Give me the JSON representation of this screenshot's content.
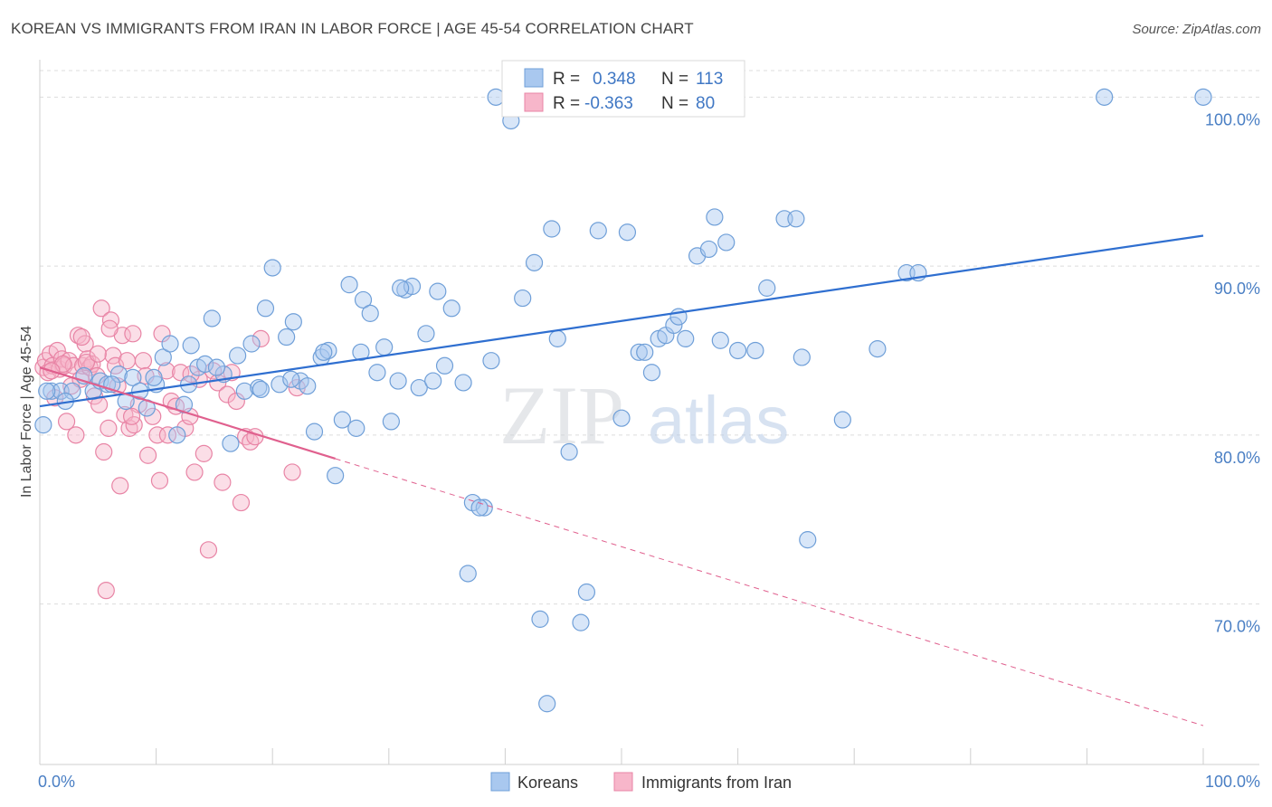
{
  "header": {
    "title": "KOREAN VS IMMIGRANTS FROM IRAN IN LABOR FORCE | AGE 45-54 CORRELATION CHART",
    "source": "Source: ZipAtlas.com"
  },
  "watermark": {
    "zip": "ZIP",
    "atlas": "atlas"
  },
  "legend": {
    "koreans": {
      "r_label": "R =",
      "r_value": "0.348",
      "n_label": "N =",
      "n_value": "113"
    },
    "iran": {
      "r_label": "R =",
      "r_value": "-0.363",
      "n_label": "N =",
      "n_value": "80"
    }
  },
  "bottom_legend": {
    "koreans": "Koreans",
    "iran": "Immigrants from Iran"
  },
  "colors": {
    "koreans_fill": "#a9c8ef",
    "koreans_stroke": "#6f9fd8",
    "koreans_line": "#2f6fd0",
    "iran_fill": "#f7b6ca",
    "iran_stroke": "#e884a5",
    "iran_line": "#e0608e",
    "grid": "#dcdcdc",
    "tick_text": "#4a7fc4"
  },
  "chart_data": {
    "type": "scatter",
    "title": "KOREAN VS IMMIGRANTS FROM IRAN IN LABOR FORCE | AGE 45-54 CORRELATION CHART",
    "xlabel": "",
    "ylabel": "In Labor Force | Age 45-54",
    "xlim": [
      0,
      100
    ],
    "ylim": [
      60.5,
      102
    ],
    "x_tick_labels": [
      "0.0%",
      "100.0%"
    ],
    "y_ticks": [
      70,
      80,
      90,
      100
    ],
    "y_tick_labels": [
      "70.0%",
      "80.0%",
      "90.0%",
      "100.0%"
    ],
    "grid": true,
    "series": [
      {
        "name": "Koreans",
        "r": 0.348,
        "n": 113,
        "trend": {
          "x": [
            0,
            100
          ],
          "y": [
            81.7,
            91.8
          ]
        },
        "points": [
          [
            0.3,
            80.6
          ],
          [
            1.0,
            82.6
          ],
          [
            1.8,
            82.6
          ],
          [
            2.8,
            82.6
          ],
          [
            3.8,
            83.5
          ],
          [
            4.6,
            82.6
          ],
          [
            5.2,
            83.2
          ],
          [
            5.8,
            83.0
          ],
          [
            6.8,
            83.6
          ],
          [
            7.4,
            82.0
          ],
          [
            8.0,
            83.4
          ],
          [
            8.6,
            82.6
          ],
          [
            9.2,
            81.6
          ],
          [
            10.0,
            83.0
          ],
          [
            10.6,
            84.6
          ],
          [
            11.2,
            85.4
          ],
          [
            11.8,
            80.0
          ],
          [
            12.4,
            81.8
          ],
          [
            13.0,
            85.3
          ],
          [
            13.6,
            84.0
          ],
          [
            14.2,
            84.2
          ],
          [
            14.8,
            86.9
          ],
          [
            15.8,
            83.6
          ],
          [
            16.4,
            79.5
          ],
          [
            17.0,
            84.7
          ],
          [
            17.6,
            82.6
          ],
          [
            18.2,
            85.4
          ],
          [
            18.8,
            82.8
          ],
          [
            19.4,
            87.5
          ],
          [
            20.0,
            89.9
          ],
          [
            20.6,
            83.0
          ],
          [
            21.2,
            85.8
          ],
          [
            21.8,
            86.7
          ],
          [
            22.4,
            83.2
          ],
          [
            23.0,
            82.9
          ],
          [
            23.6,
            80.2
          ],
          [
            24.2,
            84.6
          ],
          [
            24.8,
            85.0
          ],
          [
            25.4,
            77.6
          ],
          [
            26.0,
            80.9
          ],
          [
            26.6,
            88.9
          ],
          [
            27.2,
            80.4
          ],
          [
            27.8,
            88.0
          ],
          [
            28.4,
            87.2
          ],
          [
            29.0,
            83.7
          ],
          [
            29.6,
            85.2
          ],
          [
            30.2,
            80.8
          ],
          [
            30.8,
            83.2
          ],
          [
            31.4,
            88.6
          ],
          [
            32.0,
            88.8
          ],
          [
            32.6,
            82.8
          ],
          [
            33.2,
            86.0
          ],
          [
            34.2,
            88.5
          ],
          [
            34.8,
            84.1
          ],
          [
            35.4,
            87.5
          ],
          [
            36.4,
            83.1
          ],
          [
            37.2,
            76.0
          ],
          [
            38.2,
            75.7
          ],
          [
            38.8,
            84.4
          ],
          [
            36.8,
            71.8
          ],
          [
            39.2,
            100.0
          ],
          [
            40.5,
            98.6
          ],
          [
            41.5,
            88.1
          ],
          [
            42.5,
            90.2
          ],
          [
            43.0,
            69.1
          ],
          [
            43.6,
            64.1
          ],
          [
            44.0,
            92.2
          ],
          [
            44.5,
            85.7
          ],
          [
            45.5,
            79.0
          ],
          [
            46.5,
            68.9
          ],
          [
            47.0,
            70.7
          ],
          [
            48.0,
            92.1
          ],
          [
            50.0,
            81.0
          ],
          [
            50.5,
            92.0
          ],
          [
            51.5,
            84.9
          ],
          [
            52.0,
            84.9
          ],
          [
            52.6,
            83.7
          ],
          [
            53.2,
            85.7
          ],
          [
            53.8,
            85.9
          ],
          [
            54.5,
            86.5
          ],
          [
            54.9,
            87.0
          ],
          [
            55.5,
            85.7
          ],
          [
            56.5,
            90.6
          ],
          [
            57.5,
            91.0
          ],
          [
            58.0,
            92.9
          ],
          [
            58.5,
            85.6
          ],
          [
            59.0,
            91.4
          ],
          [
            60.0,
            85.0
          ],
          [
            61.5,
            85.0
          ],
          [
            62.5,
            88.7
          ],
          [
            64.0,
            92.8
          ],
          [
            65.0,
            92.8
          ],
          [
            65.5,
            84.6
          ],
          [
            66.0,
            73.8
          ],
          [
            69.0,
            80.9
          ],
          [
            72.0,
            85.1
          ],
          [
            74.5,
            89.6
          ],
          [
            75.5,
            89.6
          ],
          [
            91.5,
            100.0
          ],
          [
            100.0,
            100.0
          ],
          [
            0.6,
            82.6
          ],
          [
            2.2,
            82.0
          ],
          [
            6.2,
            83.0
          ],
          [
            9.8,
            83.4
          ],
          [
            12.8,
            83.0
          ],
          [
            15.2,
            84.0
          ],
          [
            19.0,
            82.7
          ],
          [
            21.6,
            83.3
          ],
          [
            24.4,
            84.9
          ],
          [
            27.6,
            84.9
          ],
          [
            31.0,
            88.7
          ],
          [
            33.8,
            83.2
          ],
          [
            37.8,
            75.7
          ]
        ]
      },
      {
        "name": "Immigrants from Iran",
        "r": -0.363,
        "n": 80,
        "trend": {
          "x": [
            0,
            25.4
          ],
          "y": [
            84.0,
            78.6
          ]
        },
        "trend_extended": {
          "x": [
            25.4,
            100
          ],
          "y": [
            78.6,
            62.8
          ]
        },
        "points": [
          [
            0.3,
            84.0
          ],
          [
            0.5,
            84.4
          ],
          [
            0.7,
            83.7
          ],
          [
            0.9,
            84.8
          ],
          [
            1.1,
            84.1
          ],
          [
            1.3,
            82.2
          ],
          [
            1.5,
            85.0
          ],
          [
            1.7,
            83.9
          ],
          [
            1.9,
            84.5
          ],
          [
            2.1,
            84.1
          ],
          [
            2.3,
            80.8
          ],
          [
            2.5,
            84.4
          ],
          [
            2.7,
            82.9
          ],
          [
            2.9,
            84.1
          ],
          [
            3.1,
            80.0
          ],
          [
            3.3,
            85.9
          ],
          [
            3.5,
            83.3
          ],
          [
            3.7,
            84.1
          ],
          [
            3.9,
            85.4
          ],
          [
            4.1,
            84.5
          ],
          [
            4.3,
            84.0
          ],
          [
            4.5,
            84.2
          ],
          [
            4.7,
            82.3
          ],
          [
            4.9,
            83.5
          ],
          [
            5.1,
            81.8
          ],
          [
            5.3,
            87.5
          ],
          [
            5.5,
            79.0
          ],
          [
            5.7,
            70.8
          ],
          [
            5.9,
            80.4
          ],
          [
            6.1,
            86.8
          ],
          [
            6.3,
            84.7
          ],
          [
            6.5,
            84.1
          ],
          [
            6.7,
            82.9
          ],
          [
            6.9,
            77.0
          ],
          [
            7.1,
            85.9
          ],
          [
            7.3,
            81.2
          ],
          [
            7.5,
            84.4
          ],
          [
            7.7,
            80.4
          ],
          [
            8.1,
            80.6
          ],
          [
            8.5,
            81.8
          ],
          [
            8.9,
            84.4
          ],
          [
            9.3,
            78.8
          ],
          [
            9.7,
            81.1
          ],
          [
            10.1,
            80.0
          ],
          [
            10.5,
            86.0
          ],
          [
            10.9,
            83.8
          ],
          [
            11.3,
            82.0
          ],
          [
            11.7,
            81.7
          ],
          [
            12.1,
            83.7
          ],
          [
            12.5,
            80.4
          ],
          [
            12.9,
            81.1
          ],
          [
            13.3,
            77.8
          ],
          [
            13.7,
            83.3
          ],
          [
            14.1,
            78.9
          ],
          [
            14.5,
            73.2
          ],
          [
            14.9,
            83.8
          ],
          [
            15.3,
            83.1
          ],
          [
            15.7,
            77.2
          ],
          [
            16.1,
            82.4
          ],
          [
            16.5,
            83.7
          ],
          [
            16.9,
            82.0
          ],
          [
            17.3,
            76.0
          ],
          [
            17.7,
            79.9
          ],
          [
            18.1,
            79.6
          ],
          [
            18.5,
            79.9
          ],
          [
            19.0,
            85.7
          ],
          [
            22.1,
            82.8
          ],
          [
            21.7,
            77.8
          ],
          [
            3.6,
            85.8
          ],
          [
            4.0,
            84.3
          ],
          [
            6.0,
            86.3
          ],
          [
            8.0,
            86.0
          ],
          [
            9.1,
            83.5
          ],
          [
            10.3,
            77.3
          ],
          [
            2.0,
            84.2
          ],
          [
            1.0,
            83.8
          ],
          [
            7.9,
            81.1
          ],
          [
            5.0,
            84.8
          ],
          [
            11.0,
            80.0
          ],
          [
            13.0,
            83.6
          ]
        ]
      }
    ]
  }
}
